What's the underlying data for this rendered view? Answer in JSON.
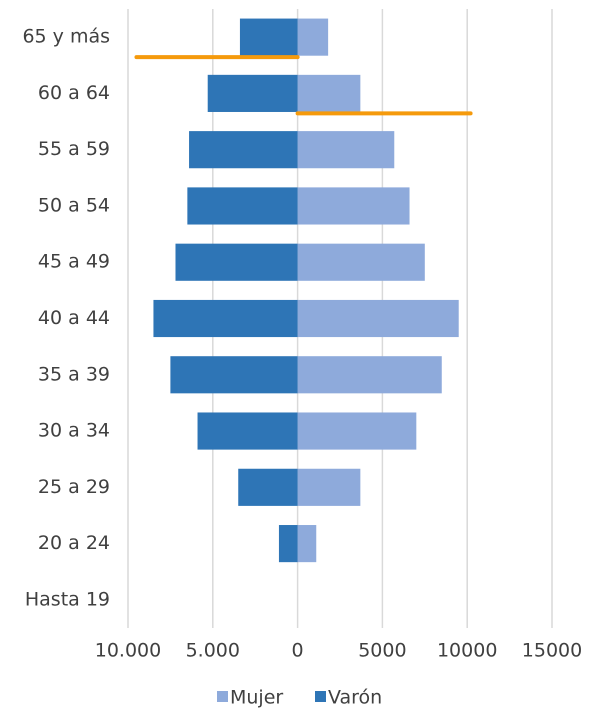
{
  "chart_data": {
    "type": "pyramid",
    "categories": [
      "65 y más",
      "60 a 64",
      "55 a 59",
      "50 a 54",
      "45 a 49",
      "40 a 44",
      "35 a 39",
      "30 a 34",
      "25 a 29",
      "20 a 24",
      "Hasta 19"
    ],
    "series": [
      {
        "name": "Mujer",
        "color": "#8eaadb",
        "values": [
          1800,
          3700,
          5700,
          6600,
          7500,
          9500,
          8500,
          7000,
          3700,
          1100,
          0
        ]
      },
      {
        "name": "Varón",
        "color": "#2e75b6",
        "values": [
          -3400,
          -5300,
          -6400,
          -6500,
          -7200,
          -8500,
          -7500,
          -5900,
          -3500,
          -1100,
          0
        ]
      }
    ],
    "xlim": [
      -10000,
      15000
    ],
    "xticks": [
      {
        "value": -10000,
        "label": "10.000"
      },
      {
        "value": -5000,
        "label": "5.000"
      },
      0,
      5000,
      10000,
      15000
    ],
    "grid": true,
    "legend": "bottom",
    "markers": [
      {
        "value": -9500,
        "color": "#f59a0c"
      },
      {
        "value": 10200,
        "color": "#f59a0c"
      }
    ]
  }
}
